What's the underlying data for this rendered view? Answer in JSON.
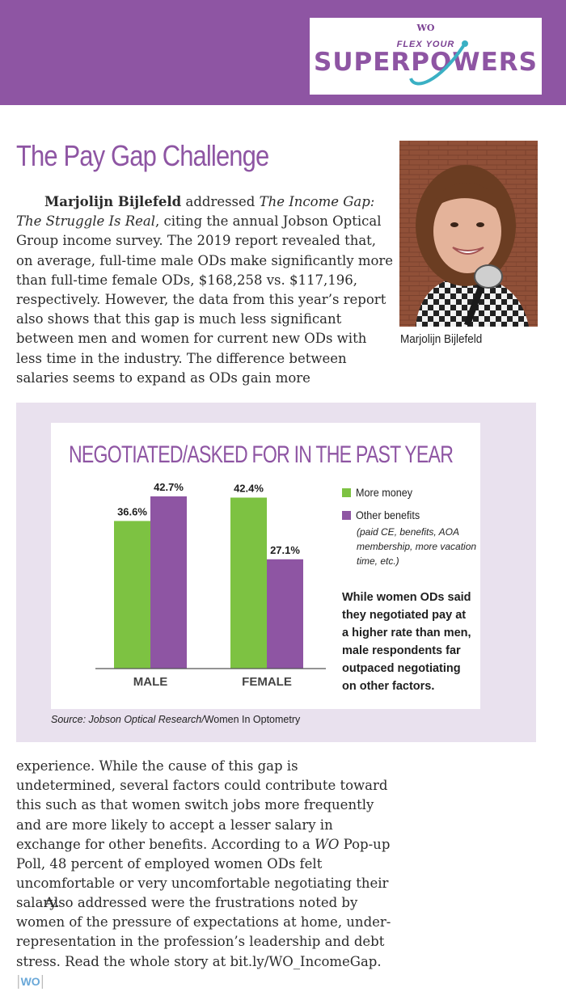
{
  "header": {
    "logo_wo": "WO",
    "logo_top": "FLEX YOUR",
    "logo_main": "SUPERPOWERS",
    "band_color": "#8e55a3"
  },
  "article": {
    "title": "The Pay Gap Challenge",
    "photo_caption": "Marjolijn Bijlefeld",
    "p1_name": "Marjolijn Bijlefeld",
    "p1_a": " addressed ",
    "p1_italic": "The Income Gap: The Struggle Is Real",
    "p1_b": ", citing the annual Jobson Optical Group income survey. The 2019 report revealed that, on average, full-time male ODs make significantly more than full-time female ODs, $168,258 vs. $117,196, respectively. However, the data from this year’s report also shows that this gap is much less significant between men and women for current new ODs with less time in the industry. The difference between salaries seems to expand as ODs gain more",
    "p3_a": "experience. While the cause of this gap is undetermined, several factors could contribute toward this such as that women switch jobs more frequently and are more likely to accept a lesser salary in exchange for other benefits. According to a ",
    "p3_italic": "WO",
    "p3_b": " Pop-up Poll, 48 percent of employed women ODs felt uncomfortable or very uncomfortable negotiating their salary.",
    "p4": "Also addressed were the frustrations noted by women of the pressure of expectations at home, under-representation in the profession’s leadership and debt stress. Read the whole story at bit.ly/WO_IncomeGap. ",
    "end_mark": "WO"
  },
  "chart_data": {
    "type": "bar",
    "title": "NEGOTIATED/ASKED FOR IN THE PAST YEAR",
    "categories": [
      "MALE",
      "FEMALE"
    ],
    "series": [
      {
        "name": "More money",
        "values": [
          36.6,
          42.4
        ],
        "labels": [
          "36.6%",
          "42.4%"
        ],
        "color": "#7dc242"
      },
      {
        "name": "Other benefits",
        "values": [
          42.7,
          27.1
        ],
        "labels": [
          "42.7%",
          "27.1%"
        ],
        "color": "#8e55a3"
      }
    ],
    "legend_note": "(paid CE, benefits, AOA membership, more vacation time, etc.)",
    "note": "While women ODs said they negotiated pay at a higher rate than men, male respondents far outpaced negotiating on other factors.",
    "source_label": "Source: Jobson Optical Research/",
    "source_name": "Women In Optometry",
    "legend_position": "right",
    "grid": false
  }
}
